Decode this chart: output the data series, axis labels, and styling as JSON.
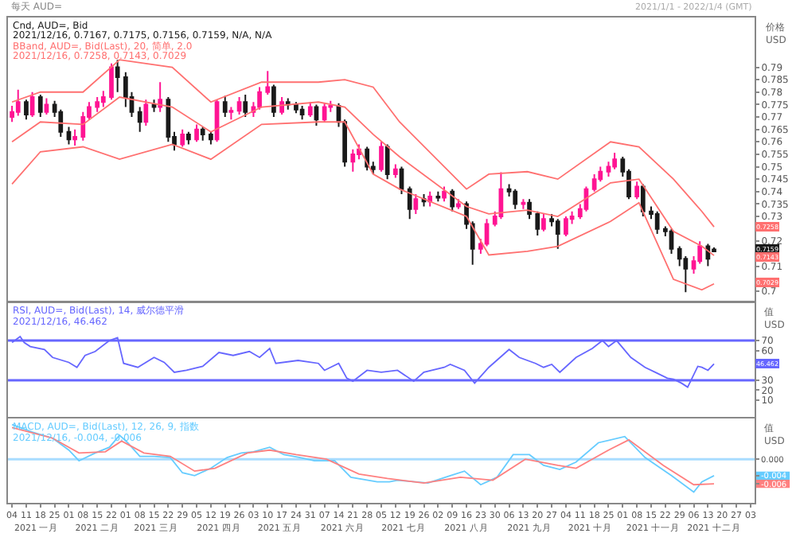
{
  "chart_data": [
    {
      "type": "candlestick",
      "title": "每天 AUD=",
      "subtitle": "2021/1/1 - 2022/1/4 (GMT)",
      "ylabel": "价格\nUSD",
      "colors": [
        "#ff1493",
        "#ff1493",
        "#1a1a1a",
        "#ff1493",
        "#1a1a1a",
        "#ff1493",
        "#1a1a1a",
        "#1a1a1a",
        "#1a1a1a",
        "#ff1493",
        "#ff1493",
        "#ff1493",
        "#ff1493",
        "#ff1493",
        "#ff1493",
        "#1a1a1a",
        "#1a1a1a",
        "#1a1a1a",
        "#1a1a1a",
        "#ff1493",
        "#1a1a1a",
        "#ff1493",
        "#1a1a1a",
        "#1a1a1a",
        "#ff1493",
        "#1a1a1a",
        "#ff1493",
        "#1a1a1a",
        "#1a1a1a",
        "#ff1493",
        "#1a1a1a",
        "#ff1493",
        "#ff1493",
        "#1a1a1a",
        "#ff1493",
        "#ff1493",
        "#ff1493",
        "#1a1a1a",
        "#ff1493",
        "#1a1a1a",
        "#1a1a1a",
        "#1a1a1a",
        "#ff1493",
        "#1a1a1a",
        "#ff1493",
        "#ff1493",
        "#1a1a1a",
        "#1a1a1a",
        "#ff1493",
        "#ff1493",
        "#1a1a1a",
        "#1a1a1a",
        "#ff1493",
        "#1a1a1a",
        "#ff1493",
        "#1a1a1a",
        "#1a1a1a",
        "#ff1493",
        "#1a1a1a",
        "#ff1493",
        "#1a1a1a",
        "#ff1493",
        "#1a1a1a",
        "#ff1493",
        "#1a1a1a",
        "#1a1a1a",
        "#ff1493",
        "#ff1493",
        "#ff1493",
        "#ff1493",
        "#1a1a1a",
        "#1a1a1a",
        "#ff1493",
        "#1a1a1a",
        "#1a1a1a",
        "#ff1493",
        "#1a1a1a",
        "#1a1a1a",
        "#ff1493",
        "#ff1493",
        "#ff1493",
        "#ff1493",
        "#ff1493",
        "#ff1493",
        "#ff1493",
        "#ff1493",
        "#1a1a1a",
        "#1a1a1a",
        "#ff1493",
        "#1a1a1a",
        "#1a1a1a",
        "#1a1a1a",
        "#1a1a1a",
        "#1a1a1a",
        "#1a1a1a",
        "#1a1a1a",
        "#ff1493",
        "#ff1493",
        "#1a1a1a",
        "#1a1a1a"
      ],
      "x": [
        "2021-01-04",
        "2021-01-07",
        "2021-01-11",
        "2021-01-14",
        "2021-01-18",
        "2021-01-21",
        "2021-01-25",
        "2021-01-28",
        "2021-02-01",
        "2021-02-04",
        "2021-02-08",
        "2021-02-11",
        "2021-02-15",
        "2021-02-18",
        "2021-02-22",
        "2021-02-25",
        "2021-03-01",
        "2021-03-04",
        "2021-03-08",
        "2021-03-11",
        "2021-03-15",
        "2021-03-18",
        "2021-03-22",
        "2021-03-25",
        "2021-03-29",
        "2021-04-01",
        "2021-04-05",
        "2021-04-08",
        "2021-04-12",
        "2021-04-15",
        "2021-04-19",
        "2021-04-22",
        "2021-04-26",
        "2021-04-29",
        "2021-05-03",
        "2021-05-06",
        "2021-05-10",
        "2021-05-13",
        "2021-05-17",
        "2021-05-20",
        "2021-05-24",
        "2021-05-27",
        "2021-05-31",
        "2021-06-03",
        "2021-06-07",
        "2021-06-10",
        "2021-06-14",
        "2021-06-17",
        "2021-06-21",
        "2021-06-24",
        "2021-06-28",
        "2021-07-01",
        "2021-07-05",
        "2021-07-08",
        "2021-07-12",
        "2021-07-15",
        "2021-07-19",
        "2021-07-22",
        "2021-07-26",
        "2021-07-29",
        "2021-08-02",
        "2021-08-05",
        "2021-08-09",
        "2021-08-12",
        "2021-08-16",
        "2021-08-19",
        "2021-08-23",
        "2021-08-26",
        "2021-08-30",
        "2021-09-02",
        "2021-09-06",
        "2021-09-09",
        "2021-09-13",
        "2021-09-16",
        "2021-09-20",
        "2021-09-23",
        "2021-09-27",
        "2021-09-30",
        "2021-10-04",
        "2021-10-07",
        "2021-10-11",
        "2021-10-14",
        "2021-10-18",
        "2021-10-21",
        "2021-10-25",
        "2021-10-28",
        "2021-11-01",
        "2021-11-04",
        "2021-11-08",
        "2021-11-11",
        "2021-11-15",
        "2021-11-18",
        "2021-11-22",
        "2021-11-25",
        "2021-11-29",
        "2021-12-02",
        "2021-12-06",
        "2021-12-09",
        "2021-12-13",
        "2021-12-16"
      ],
      "ohlc": [
        [
          0.77,
          0.7745,
          0.768,
          0.772
        ],
        [
          0.772,
          0.781,
          0.7705,
          0.776
        ],
        [
          0.776,
          0.777,
          0.769,
          0.771
        ],
        [
          0.771,
          0.78,
          0.77,
          0.778
        ],
        [
          0.778,
          0.779,
          0.77,
          0.772
        ],
        [
          0.772,
          0.7775,
          0.771,
          0.775
        ],
        [
          0.775,
          0.7765,
          0.77,
          0.772
        ],
        [
          0.772,
          0.773,
          0.762,
          0.764
        ],
        [
          0.764,
          0.766,
          0.759,
          0.761
        ],
        [
          0.761,
          0.765,
          0.7585,
          0.762
        ],
        [
          0.762,
          0.772,
          0.7605,
          0.77
        ],
        [
          0.77,
          0.776,
          0.769,
          0.774
        ],
        [
          0.774,
          0.778,
          0.772,
          0.776
        ],
        [
          0.776,
          0.7805,
          0.774,
          0.778
        ],
        [
          0.778,
          0.7915,
          0.777,
          0.79
        ],
        [
          0.79,
          0.793,
          0.78,
          0.786
        ],
        [
          0.786,
          0.788,
          0.774,
          0.778
        ],
        [
          0.778,
          0.78,
          0.77,
          0.772
        ],
        [
          0.772,
          0.774,
          0.764,
          0.768
        ],
        [
          0.768,
          0.777,
          0.7665,
          0.775
        ],
        [
          0.775,
          0.777,
          0.772,
          0.774
        ],
        [
          0.774,
          0.784,
          0.772,
          0.777
        ],
        [
          0.777,
          0.778,
          0.76,
          0.762
        ],
        [
          0.762,
          0.764,
          0.7565,
          0.759
        ],
        [
          0.759,
          0.765,
          0.758,
          0.763
        ],
        [
          0.763,
          0.764,
          0.759,
          0.761
        ],
        [
          0.761,
          0.767,
          0.76,
          0.765
        ],
        [
          0.765,
          0.766,
          0.7605,
          0.763
        ],
        [
          0.763,
          0.764,
          0.759,
          0.761
        ],
        [
          0.761,
          0.777,
          0.76,
          0.776
        ],
        [
          0.776,
          0.7785,
          0.77,
          0.772
        ],
        [
          0.772,
          0.774,
          0.769,
          0.7725
        ],
        [
          0.7725,
          0.778,
          0.771,
          0.776
        ],
        [
          0.776,
          0.779,
          0.77,
          0.772
        ],
        [
          0.772,
          0.776,
          0.77,
          0.774
        ],
        [
          0.774,
          0.782,
          0.773,
          0.78
        ],
        [
          0.78,
          0.7885,
          0.779,
          0.782
        ],
        [
          0.782,
          0.783,
          0.77,
          0.772
        ],
        [
          0.772,
          0.778,
          0.771,
          0.776
        ],
        [
          0.776,
          0.7775,
          0.773,
          0.775
        ],
        [
          0.775,
          0.776,
          0.7715,
          0.773
        ],
        [
          0.773,
          0.7745,
          0.769,
          0.771
        ],
        [
          0.771,
          0.776,
          0.77,
          0.774
        ],
        [
          0.774,
          0.775,
          0.7665,
          0.769
        ],
        [
          0.769,
          0.7755,
          0.768,
          0.774
        ],
        [
          0.774,
          0.7765,
          0.772,
          0.7745
        ],
        [
          0.7745,
          0.7755,
          0.766,
          0.768
        ],
        [
          0.768,
          0.769,
          0.75,
          0.752
        ],
        [
          0.752,
          0.757,
          0.748,
          0.755
        ],
        [
          0.755,
          0.759,
          0.753,
          0.757
        ],
        [
          0.757,
          0.758,
          0.7485,
          0.75
        ],
        [
          0.75,
          0.752,
          0.747,
          0.749
        ],
        [
          0.749,
          0.76,
          0.748,
          0.758
        ],
        [
          0.758,
          0.759,
          0.745,
          0.747
        ],
        [
          0.747,
          0.751,
          0.7455,
          0.749
        ],
        [
          0.749,
          0.75,
          0.739,
          0.741
        ],
        [
          0.741,
          0.742,
          0.729,
          0.733
        ],
        [
          0.733,
          0.739,
          0.731,
          0.737
        ],
        [
          0.737,
          0.739,
          0.734,
          0.736
        ],
        [
          0.736,
          0.74,
          0.734,
          0.738
        ],
        [
          0.738,
          0.74,
          0.736,
          0.7375
        ],
        [
          0.7375,
          0.742,
          0.736,
          0.74
        ],
        [
          0.74,
          0.741,
          0.732,
          0.734
        ],
        [
          0.734,
          0.737,
          0.733,
          0.735
        ],
        [
          0.735,
          0.736,
          0.725,
          0.727
        ],
        [
          0.727,
          0.728,
          0.7106,
          0.717
        ],
        [
          0.717,
          0.721,
          0.715,
          0.719
        ],
        [
          0.719,
          0.729,
          0.718,
          0.727
        ],
        [
          0.727,
          0.732,
          0.726,
          0.73
        ],
        [
          0.73,
          0.7478,
          0.729,
          0.741
        ],
        [
          0.741,
          0.743,
          0.738,
          0.74
        ],
        [
          0.74,
          0.741,
          0.733,
          0.735
        ],
        [
          0.735,
          0.737,
          0.733,
          0.7355
        ],
        [
          0.7355,
          0.737,
          0.729,
          0.731
        ],
        [
          0.731,
          0.732,
          0.7223,
          0.725
        ],
        [
          0.725,
          0.731,
          0.724,
          0.729
        ],
        [
          0.729,
          0.731,
          0.726,
          0.728
        ],
        [
          0.728,
          0.729,
          0.717,
          0.723
        ],
        [
          0.723,
          0.73,
          0.722,
          0.729
        ],
        [
          0.729,
          0.732,
          0.727,
          0.73
        ],
        [
          0.73,
          0.735,
          0.729,
          0.733
        ],
        [
          0.733,
          0.742,
          0.732,
          0.741
        ],
        [
          0.741,
          0.747,
          0.74,
          0.745
        ],
        [
          0.745,
          0.75,
          0.744,
          0.748
        ],
        [
          0.748,
          0.752,
          0.746,
          0.75
        ],
        [
          0.75,
          0.7556,
          0.749,
          0.753
        ],
        [
          0.753,
          0.754,
          0.746,
          0.748
        ],
        [
          0.748,
          0.749,
          0.737,
          0.738
        ],
        [
          0.738,
          0.744,
          0.737,
          0.742
        ],
        [
          0.742,
          0.743,
          0.73,
          0.732
        ],
        [
          0.732,
          0.734,
          0.729,
          0.731
        ],
        [
          0.731,
          0.732,
          0.723,
          0.725
        ],
        [
          0.725,
          0.726,
          0.722,
          0.724
        ],
        [
          0.724,
          0.725,
          0.715,
          0.717
        ],
        [
          0.717,
          0.718,
          0.71,
          0.713
        ],
        [
          0.713,
          0.714,
          0.6995,
          0.709
        ],
        [
          0.709,
          0.714,
          0.707,
          0.712
        ],
        [
          0.712,
          0.72,
          0.711,
          0.718
        ],
        [
          0.718,
          0.719,
          0.71,
          0.713
        ],
        [
          0.7167,
          0.7175,
          0.7156,
          0.7159
        ]
      ],
      "series": [
        {
          "type": "line",
          "color": "#ff7070",
          "x": [
            "2021-01-04",
            "2021-01-18",
            "2021-02-08",
            "2021-02-26",
            "2021-03-24",
            "2021-04-12",
            "2021-05-07",
            "2021-06-04",
            "2021-06-17",
            "2021-07-01",
            "2021-07-14",
            "2021-08-16",
            "2021-08-27",
            "2021-09-15",
            "2021-09-30",
            "2021-10-26",
            "2021-11-09",
            "2021-11-26",
            "2021-12-10",
            "2021-12-16"
          ],
          "values": [
            0.776,
            0.78,
            0.78,
            0.793,
            0.79,
            0.776,
            0.784,
            0.784,
            0.785,
            0.782,
            0.768,
            0.741,
            0.747,
            0.748,
            0.745,
            0.76,
            0.758,
            0.745,
            0.732,
            0.7258
          ]
        },
        {
          "type": "line",
          "color": "#ff7070",
          "x": [
            "2021-01-04",
            "2021-01-18",
            "2021-02-08",
            "2021-02-26",
            "2021-03-24",
            "2021-04-12",
            "2021-05-07",
            "2021-06-04",
            "2021-06-17",
            "2021-07-01",
            "2021-07-14",
            "2021-08-16",
            "2021-08-27",
            "2021-09-15",
            "2021-09-30",
            "2021-10-26",
            "2021-11-09",
            "2021-11-26",
            "2021-12-10",
            "2021-12-16"
          ],
          "values": [
            0.76,
            0.768,
            0.767,
            0.778,
            0.774,
            0.764,
            0.774,
            0.776,
            0.774,
            0.763,
            0.754,
            0.734,
            0.731,
            0.7325,
            0.73,
            0.7435,
            0.745,
            0.724,
            0.718,
            0.7143
          ]
        },
        {
          "type": "line",
          "color": "#ff7070",
          "x": [
            "2021-01-04",
            "2021-01-18",
            "2021-02-08",
            "2021-02-26",
            "2021-03-24",
            "2021-04-12",
            "2021-05-07",
            "2021-06-04",
            "2021-06-17",
            "2021-07-01",
            "2021-07-14",
            "2021-08-16",
            "2021-08-27",
            "2021-09-15",
            "2021-09-30",
            "2021-10-26",
            "2021-11-09",
            "2021-11-26",
            "2021-12-10",
            "2021-12-16"
          ],
          "values": [
            0.743,
            0.756,
            0.758,
            0.753,
            0.759,
            0.753,
            0.767,
            0.768,
            0.768,
            0.747,
            0.741,
            0.73,
            0.7145,
            0.716,
            0.718,
            0.728,
            0.7355,
            0.7047,
            0.7005,
            0.7029
          ]
        }
      ],
      "xlim": [
        "2021-01-02",
        "2022-01-05"
      ],
      "ylim": [
        0.696,
        0.81
      ],
      "yticks": [
        0.7,
        0.71,
        0.72,
        0.73,
        0.735,
        0.74,
        0.745,
        0.75,
        0.755,
        0.76,
        0.765,
        0.77,
        0.775,
        0.78,
        0.785,
        0.79
      ],
      "tick_labels": "y",
      "annotations": [
        "Cnd, AUD=, Bid",
        "2021/12/16, 0.7167, 0.7175, 0.7156, 0.7159, N/A, N/A",
        "BBand, AUD=, Bid(Last), 20, 简单, 2.0",
        "2021/12/16, 0.7258, 0.7143, 0.7029",
        {
          "text": "0.7258",
          "y": 0.7258
        },
        {
          "text": "0.7159",
          "y": 0.7159
        },
        {
          "text": "0.7143",
          "y": 0.7143
        },
        {
          "text": "0.7029",
          "y": 0.7029
        }
      ]
    },
    {
      "type": "line",
      "ylabel": "值\nUSD",
      "series": [
        {
          "color": "#6666ff",
          "x": [
            "2021-01-04",
            "2021-01-08",
            "2021-01-10",
            "2021-01-13",
            "2021-01-20",
            "2021-01-24",
            "2021-02-01",
            "2021-02-05",
            "2021-02-09",
            "2021-02-14",
            "2021-02-21",
            "2021-02-25",
            "2021-02-28",
            "2021-03-07",
            "2021-03-15",
            "2021-03-20",
            "2021-03-25",
            "2021-03-31",
            "2021-04-08",
            "2021-04-16",
            "2021-04-23",
            "2021-05-01",
            "2021-05-06",
            "2021-05-11",
            "2021-05-14",
            "2021-05-25",
            "2021-06-04",
            "2021-06-07",
            "2021-06-14",
            "2021-06-18",
            "2021-06-21",
            "2021-06-28",
            "2021-07-05",
            "2021-07-13",
            "2021-07-21",
            "2021-07-26",
            "2021-08-05",
            "2021-08-08",
            "2021-08-15",
            "2021-08-20",
            "2021-08-27",
            "2021-09-06",
            "2021-09-11",
            "2021-09-19",
            "2021-09-23",
            "2021-09-27",
            "2021-10-01",
            "2021-10-09",
            "2021-10-17",
            "2021-10-22",
            "2021-10-25",
            "2021-10-29",
            "2021-11-05",
            "2021-11-12",
            "2021-11-17",
            "2021-11-23",
            "2021-11-26",
            "2021-11-30",
            "2021-12-03",
            "2021-12-08",
            "2021-12-10",
            "2021-12-13",
            "2021-12-16"
          ],
          "values": [
            68,
            74,
            68,
            64,
            61,
            53,
            48,
            43,
            55,
            59,
            70,
            73,
            47,
            43,
            53,
            48,
            38,
            40,
            44,
            58,
            55,
            59,
            53,
            62,
            47,
            50,
            47,
            40,
            47,
            32,
            29,
            40,
            38,
            40,
            29,
            38,
            43,
            46,
            40,
            27,
            43,
            61,
            53,
            47,
            43,
            46,
            38,
            53,
            62,
            70,
            64,
            70,
            53,
            43,
            38,
            32,
            31,
            27,
            23,
            44,
            43,
            40,
            46.462
          ]
        }
      ],
      "ref_lines": [
        {
          "axis": "y",
          "value": 70,
          "color": "#6666ff"
        },
        {
          "axis": "y",
          "value": 30,
          "color": "#6666ff"
        }
      ],
      "xlim": [
        "2021-01-02",
        "2022-01-05"
      ],
      "ylim": [
        -7,
        108
      ],
      "yticks": [
        10,
        20,
        30,
        60,
        70
      ],
      "tick_labels": "y",
      "annotations": [
        "RSI, AUD=, Bid(Last), 14, 威尔德平滑",
        "2021/12/16, 46.462",
        {
          "text": "46.462",
          "y": 46.462
        }
      ]
    },
    {
      "type": "line",
      "ylabel": "值\nUSD",
      "series": [
        {
          "color": "#66ccff",
          "x": [
            "2021-01-04",
            "2021-01-14",
            "2021-01-24",
            "2021-02-01",
            "2021-02-06",
            "2021-02-14",
            "2021-02-21",
            "2021-02-26",
            "2021-03-02",
            "2021-03-08",
            "2021-03-15",
            "2021-03-23",
            "2021-03-29",
            "2021-04-04",
            "2021-04-12",
            "2021-04-20",
            "2021-04-27",
            "2021-05-03",
            "2021-05-11",
            "2021-05-18",
            "2021-05-26",
            "2021-06-02",
            "2021-06-12",
            "2021-06-20",
            "2021-07-03",
            "2021-07-09",
            "2021-07-13",
            "2021-07-28",
            "2021-08-08",
            "2021-08-15",
            "2021-08-23",
            "2021-08-31",
            "2021-09-08",
            "2021-09-16",
            "2021-09-23",
            "2021-10-01",
            "2021-10-09",
            "2021-10-20",
            "2021-11-02",
            "2021-11-12",
            "2021-11-25",
            "2021-12-06",
            "2021-12-10",
            "2021-12-16"
          ],
          "values": [
            0.0084,
            0.0066,
            0.0051,
            0.0022,
            -0.0004,
            0.0015,
            0.0029,
            0.0058,
            0.004,
            0.0007,
            0.0007,
            0.0004,
            -0.0033,
            -0.004,
            -0.0022,
            0.0004,
            0.0015,
            0.0018,
            0.0029,
            0.0011,
            0.0004,
            -0.0004,
            -0.0004,
            -0.0044,
            -0.0055,
            -0.0055,
            -0.0051,
            -0.0058,
            -0.004,
            -0.0029,
            -0.0062,
            -0.0044,
            0.0011,
            0.0011,
            -0.0015,
            -0.0025,
            -0.0007,
            0.004,
            0.0055,
            0.0004,
            -0.004,
            -0.008,
            -0.0055,
            -0.004
          ]
        },
        {
          "color": "#ff8080",
          "x": [
            "2021-01-04",
            "2021-01-24",
            "2021-02-06",
            "2021-02-19",
            "2021-02-27",
            "2021-03-10",
            "2021-03-23",
            "2021-04-04",
            "2021-04-14",
            "2021-04-30",
            "2021-05-11",
            "2021-05-24",
            "2021-06-08",
            "2021-06-24",
            "2021-07-08",
            "2021-07-26",
            "2021-08-13",
            "2021-08-29",
            "2021-09-14",
            "2021-09-30",
            "2021-10-09",
            "2021-10-25",
            "2021-11-04",
            "2021-11-21",
            "2021-12-06",
            "2021-12-16"
          ],
          "values": [
            0.0077,
            0.0051,
            0.0015,
            0.0018,
            0.0044,
            0.0015,
            0.0007,
            -0.0029,
            -0.0022,
            0.0015,
            0.0022,
            0.0011,
            0,
            -0.0036,
            -0.0047,
            -0.0058,
            -0.0044,
            -0.0051,
            0,
            -0.0015,
            -0.0022,
            0.0022,
            0.0047,
            -0.0015,
            -0.0062,
            -0.006
          ]
        }
      ],
      "ref_lines": [
        {
          "axis": "y",
          "value": 0,
          "color": "#a8dcff"
        }
      ],
      "xlim": [
        "2021-01-02",
        "2022-01-05"
      ],
      "ylim": [
        -0.0106,
        0.0098
      ],
      "yticks": [
        -0.006,
        -0.004,
        {
          "value": 0,
          "label": "0.000"
        }
      ],
      "x2lim": [
        "2021-01-02",
        "2022-01-05"
      ],
      "xticks": [
        {
          "value": "2021-01-04",
          "label": "04"
        },
        {
          "value": "2021-01-11",
          "label": "11"
        },
        {
          "value": "2021-01-18",
          "label": "18"
        },
        {
          "value": "2021-01-25",
          "label": "25"
        },
        {
          "value": "2021-02-01",
          "label": "01"
        },
        {
          "value": "2021-02-08",
          "label": "08"
        },
        {
          "value": "2021-02-15",
          "label": "15"
        },
        {
          "value": "2021-02-22",
          "label": "22"
        },
        {
          "value": "2021-03-01",
          "label": "01"
        },
        {
          "value": "2021-03-08",
          "label": "08"
        },
        {
          "value": "2021-03-15",
          "label": "15"
        },
        {
          "value": "2021-03-22",
          "label": "22"
        },
        {
          "value": "2021-03-29",
          "label": "29"
        },
        {
          "value": "2021-04-05",
          "label": "05"
        },
        {
          "value": "2021-04-12",
          "label": "12"
        },
        {
          "value": "2021-04-19",
          "label": "19"
        },
        {
          "value": "2021-04-26",
          "label": "26"
        },
        {
          "value": "2021-05-03",
          "label": "03"
        },
        {
          "value": "2021-05-10",
          "label": "10"
        },
        {
          "value": "2021-05-17",
          "label": "17"
        },
        {
          "value": "2021-05-24",
          "label": "24"
        },
        {
          "value": "2021-05-31",
          "label": "31"
        },
        {
          "value": "2021-06-07",
          "label": "07"
        },
        {
          "value": "2021-06-14",
          "label": "14"
        },
        {
          "value": "2021-06-21",
          "label": "21"
        },
        {
          "value": "2021-06-28",
          "label": "28"
        },
        {
          "value": "2021-07-05",
          "label": "05"
        },
        {
          "value": "2021-07-12",
          "label": "12"
        },
        {
          "value": "2021-07-19",
          "label": "19"
        },
        {
          "value": "2021-07-26",
          "label": "26"
        },
        {
          "value": "2021-08-02",
          "label": "02"
        },
        {
          "value": "2021-08-09",
          "label": "09"
        },
        {
          "value": "2021-08-16",
          "label": "16"
        },
        {
          "value": "2021-08-23",
          "label": "23"
        },
        {
          "value": "2021-08-30",
          "label": "30"
        },
        {
          "value": "2021-09-06",
          "label": "06"
        },
        {
          "value": "2021-09-13",
          "label": "13"
        },
        {
          "value": "2021-09-20",
          "label": "20"
        },
        {
          "value": "2021-09-27",
          "label": "27"
        },
        {
          "value": "2021-10-04",
          "label": "04"
        },
        {
          "value": "2021-10-11",
          "label": "11"
        },
        {
          "value": "2021-10-18",
          "label": "18"
        },
        {
          "value": "2021-10-25",
          "label": "25"
        },
        {
          "value": "2021-11-01",
          "label": "01"
        },
        {
          "value": "2021-11-08",
          "label": "08"
        },
        {
          "value": "2021-11-15",
          "label": "15"
        },
        {
          "value": "2021-11-22",
          "label": "22"
        },
        {
          "value": "2021-11-29",
          "label": "29"
        },
        {
          "value": "2021-12-06",
          "label": "06"
        },
        {
          "value": "2021-12-13",
          "label": "13"
        },
        {
          "value": "2021-12-20",
          "label": "20"
        },
        {
          "value": "2021-12-27",
          "label": "27"
        },
        {
          "value": "2022-01-03",
          "label": "03"
        }
      ],
      "x2ticks": [
        {
          "value": "2021-01-16",
          "label": "2021 一月"
        },
        {
          "value": "2021-02-15",
          "label": "2021 二月"
        },
        {
          "value": "2021-03-16",
          "label": "2021 三月"
        },
        {
          "value": "2021-04-16",
          "label": "2021 四月"
        },
        {
          "value": "2021-05-16",
          "label": "2021 五月"
        },
        {
          "value": "2021-06-16",
          "label": "2021 六月"
        },
        {
          "value": "2021-07-16",
          "label": "2021 七月"
        },
        {
          "value": "2021-08-16",
          "label": "2021 八月"
        },
        {
          "value": "2021-09-16",
          "label": "2021 九月"
        },
        {
          "value": "2021-10-16",
          "label": "2021 十月"
        },
        {
          "value": "2021-11-16",
          "label": "2021 十一月"
        },
        {
          "value": "2021-12-16",
          "label": "2021 十二月"
        }
      ],
      "annotations": [
        "MACD, AUD=, Bid(Last), 12, 26, 9, 指数",
        "2021/12/16, -0.004, -0.006"
      ]
    }
  ]
}
